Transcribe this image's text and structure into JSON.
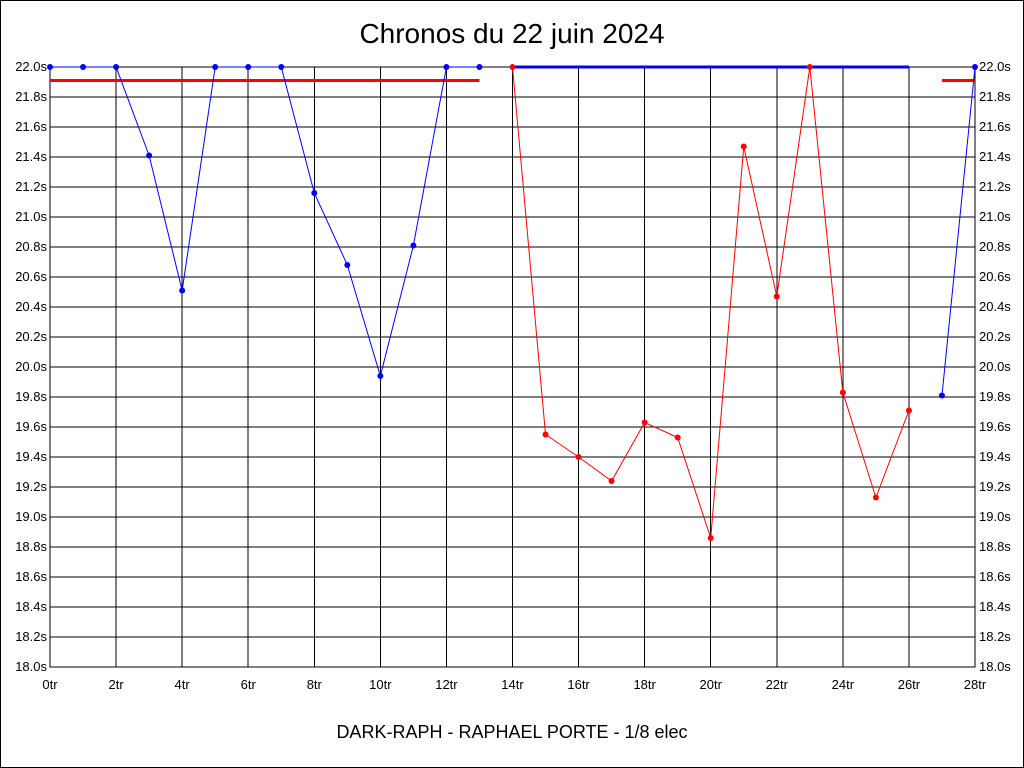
{
  "title": "Chronos du 22 juin 2024",
  "subtitle": "DARK-RAPH - RAPHAEL PORTE - 1/8 elec",
  "chart_data": {
    "type": "line",
    "x_unit": "tr",
    "y_unit": "s",
    "xlim": [
      0,
      28
    ],
    "ylim": [
      18.0,
      22.0
    ],
    "x_ticks": [
      0,
      2,
      4,
      6,
      8,
      10,
      12,
      14,
      16,
      18,
      20,
      22,
      24,
      26,
      28
    ],
    "y_ticks": [
      18.0,
      18.2,
      18.4,
      18.6,
      18.8,
      19.0,
      19.2,
      19.4,
      19.6,
      19.8,
      20.0,
      20.2,
      20.4,
      20.6,
      20.8,
      21.0,
      21.2,
      21.4,
      21.6,
      21.8,
      22.0
    ],
    "grid": true,
    "series": [
      {
        "color": "#0000ff",
        "points": [
          [
            0,
            22.0
          ],
          [
            1,
            22.0
          ],
          [
            2,
            22.0
          ],
          [
            3,
            21.41
          ],
          [
            4,
            20.51
          ],
          [
            5,
            22.0
          ],
          [
            6,
            22.0
          ],
          [
            7,
            22.0
          ],
          [
            8,
            21.16
          ],
          [
            9,
            20.68
          ],
          [
            10,
            19.94
          ],
          [
            11,
            20.81
          ],
          [
            12,
            22.0
          ],
          [
            13,
            22.0
          ]
        ]
      },
      {
        "color": "#ff0000",
        "points": [
          [
            14,
            22.0
          ],
          [
            15,
            19.55
          ],
          [
            16,
            19.4
          ],
          [
            17,
            19.24
          ],
          [
            18,
            19.63
          ],
          [
            19,
            19.53
          ],
          [
            20,
            18.86
          ],
          [
            21,
            21.47
          ],
          [
            22,
            20.47
          ],
          [
            23,
            22.0
          ],
          [
            24,
            19.83
          ],
          [
            25,
            19.13
          ],
          [
            26,
            19.71
          ]
        ]
      },
      {
        "color": "#0000ff",
        "points": [
          [
            27,
            19.81
          ],
          [
            28,
            22.0
          ]
        ]
      }
    ],
    "reference_lines": [
      {
        "color": "#0000ff",
        "y": 22.0,
        "x_range": [
          14,
          26
        ]
      },
      {
        "color": "#ff0000",
        "y": 21.91,
        "x_range": [
          0,
          13
        ]
      },
      {
        "color": "#ff0000",
        "y": 21.91,
        "x_range": [
          27,
          28
        ]
      }
    ]
  }
}
